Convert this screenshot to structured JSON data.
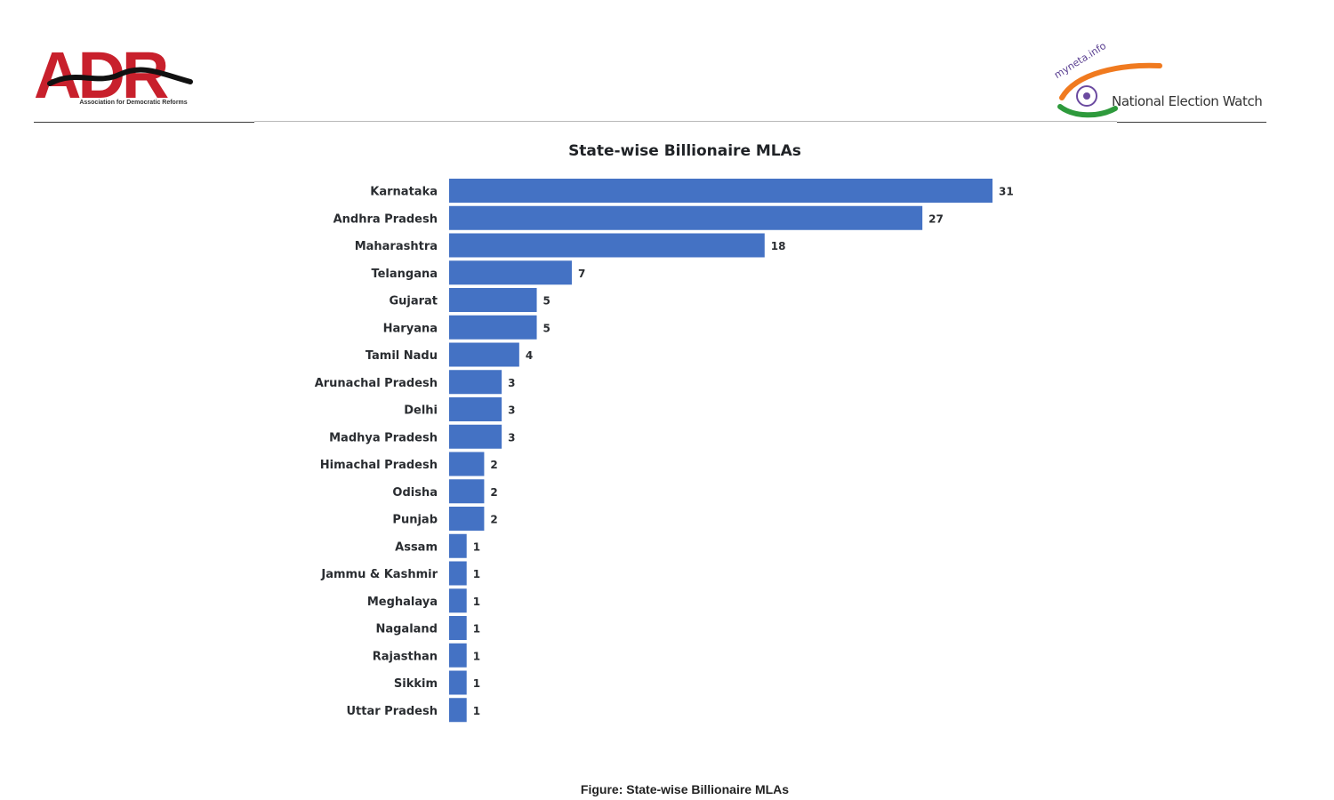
{
  "header": {
    "left_logo": {
      "text": "ADR",
      "tagline": "Association for Democratic Reforms",
      "colors": {
        "primary": "#c8202c",
        "swoosh": "#111111"
      }
    },
    "right_logo": {
      "brand": "myneta.info",
      "title": "National Election Watch",
      "colors": {
        "saffron": "#f07a1f",
        "green": "#2e9a3c",
        "chakra": "#6b4aa0"
      }
    }
  },
  "chart_data": {
    "type": "bar",
    "orientation": "horizontal",
    "title": "State-wise Billionaire MLAs",
    "categories": [
      "Karnataka",
      "Andhra Pradesh",
      "Maharashtra",
      "Telangana",
      "Gujarat",
      "Haryana",
      "Tamil Nadu",
      "Arunachal Pradesh",
      "Delhi",
      "Madhya Pradesh",
      "Himachal Pradesh",
      "Odisha",
      "Punjab",
      "Assam",
      "Jammu & Kashmir",
      "Meghalaya",
      "Nagaland",
      "Rajasthan",
      "Sikkim",
      "Uttar Pradesh"
    ],
    "values": [
      31,
      27,
      18,
      7,
      5,
      5,
      4,
      3,
      3,
      3,
      2,
      2,
      2,
      1,
      1,
      1,
      1,
      1,
      1,
      1
    ],
    "bar_color": "#4472c4",
    "data_labels": true,
    "grid": false,
    "legend": "none"
  },
  "caption": "Figure: State-wise Billionaire MLAs"
}
